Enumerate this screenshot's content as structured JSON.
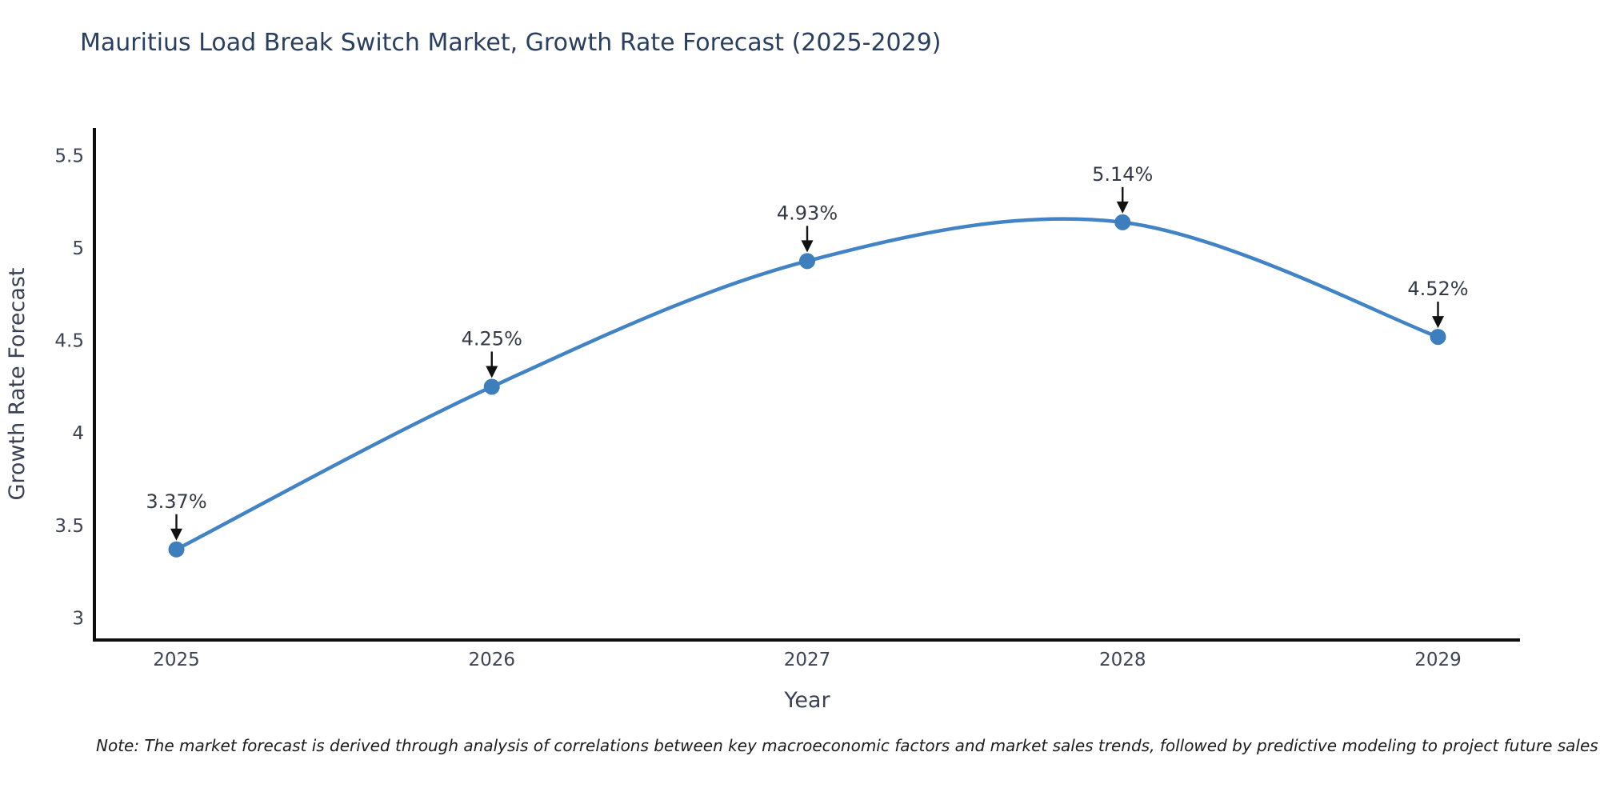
{
  "header": {
    "title": "Mauritius Load Break Switch Market, Growth Rate Forecast (2025-2029)"
  },
  "footer": {
    "note": "Note: The market forecast is derived through analysis of correlations between key macroeconomic factors and market sales trends, followed by predictive modeling to project future sales"
  },
  "chart_data": {
    "type": "line",
    "title": "Mauritius Load Break Switch Market, Growth Rate Forecast (2025-2029)",
    "xlabel": "Year",
    "ylabel": "Growth Rate Forecast",
    "x": [
      2025,
      2026,
      2027,
      2028,
      2029
    ],
    "values": [
      3.37,
      4.25,
      4.93,
      5.14,
      4.52
    ],
    "point_labels": [
      "3.37%",
      "4.25%",
      "4.93%",
      "5.14%",
      "4.52%"
    ],
    "xtick_labels": [
      "2025",
      "2026",
      "2027",
      "2028",
      "2029"
    ],
    "yticks": [
      3,
      3.5,
      4,
      4.5,
      5,
      5.5
    ],
    "xlim": [
      2024.74,
      2029.26
    ],
    "ylim": [
      2.88,
      5.65
    ],
    "grid": false,
    "legend": "none",
    "curve": "spline",
    "line_color": "#4183c4",
    "marker_color": "#3d7ebd",
    "axis_color": "#0e0e0e",
    "annotation_arrow_color": "#111111"
  }
}
